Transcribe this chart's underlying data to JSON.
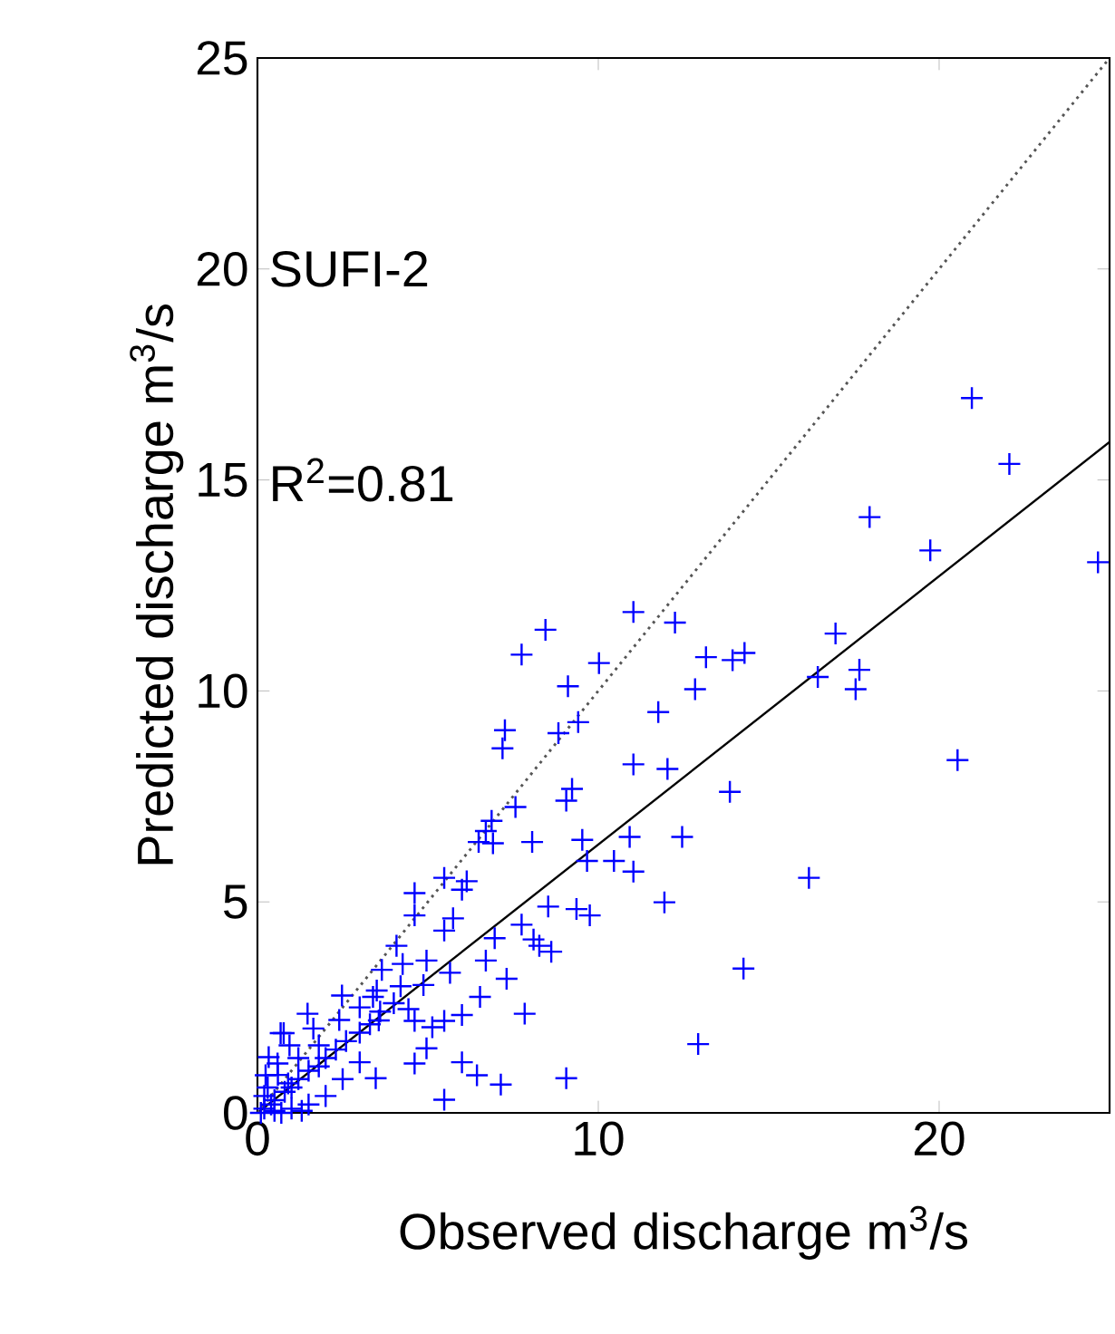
{
  "chart_data": {
    "type": "scatter",
    "xlabel": "Observed discharge m$^{3}$/s",
    "ylabel": "Predicted discharge m$^{3}$/s",
    "annotations": [
      "SUFI-2",
      "R$^{2}$=0.81"
    ],
    "xlim": [
      0,
      25
    ],
    "ylim": [
      0,
      25
    ],
    "xticks": [
      0,
      10,
      20
    ],
    "yticks": [
      0,
      5,
      10,
      15,
      20,
      25
    ],
    "grid": false,
    "series": [
      {
        "color": "#0000ff",
        "marker": "cross",
        "x": [
          20.96,
          22.06,
          17.96,
          19.74,
          24.66,
          8.45,
          11.03,
          12.25,
          16.96,
          10.02,
          9.11,
          13.16,
          13.94,
          14.29,
          12.84,
          16.44,
          17.66,
          17.55,
          11.76,
          9.41,
          8.83,
          11.03,
          12.03,
          20.54,
          9.23,
          9.06,
          13.86,
          10.92,
          12.46,
          9.53,
          9.67,
          10.46,
          11.03,
          16.18,
          11.94,
          9.36,
          9.75,
          8.53,
          8.62,
          8.27,
          14.26,
          12.93,
          9.06,
          7.75,
          7.26,
          7.19,
          7.57,
          6.87,
          6.7,
          6.49,
          6.91,
          8.06,
          5.48,
          6.14,
          6.0,
          4.61,
          4.61,
          5.74,
          5.48,
          7.75,
          8.1,
          6.96,
          6.7,
          4.08,
          4.26,
          4.96,
          4.87,
          5.65,
          7.31,
          3.65,
          2.48,
          1.47,
          1.64,
          0.77,
          3.39,
          3.56,
          4.43,
          4.61,
          5.13,
          5.48,
          6.0,
          6.53,
          7.84,
          4.96,
          4.61,
          6.0,
          6.44,
          7.14,
          5.48,
          3.47,
          0.33,
          0.59,
          0.24,
          0.94,
          0.68,
          0.2,
          0.5,
          0.8,
          1.0,
          1.2,
          1.5,
          1.8,
          2.0,
          2.3,
          2.6,
          3.0,
          3.3,
          3.6,
          4.0,
          0.5,
          1.0,
          1.5,
          2.0,
          2.5,
          3.0,
          0.3,
          0.6,
          1.2,
          1.8,
          2.4,
          3.0,
          3.5,
          4.2,
          0.1,
          0.4,
          0.7,
          1.3,
          0.2,
          0.9
        ],
        "values": [
          16.94,
          15.38,
          14.12,
          13.33,
          13.05,
          11.45,
          11.87,
          11.62,
          11.36,
          10.66,
          10.11,
          10.8,
          10.73,
          10.9,
          10.04,
          10.33,
          10.5,
          10.04,
          9.5,
          9.26,
          9.0,
          8.26,
          8.15,
          8.36,
          7.68,
          7.4,
          7.61,
          6.54,
          6.54,
          6.47,
          5.97,
          5.97,
          5.72,
          5.57,
          4.99,
          4.83,
          4.68,
          4.89,
          3.82,
          3.96,
          3.42,
          1.63,
          0.82,
          10.86,
          9.07,
          8.64,
          7.25,
          6.92,
          6.68,
          6.42,
          6.39,
          6.42,
          5.57,
          5.49,
          5.29,
          5.21,
          4.68,
          4.61,
          4.32,
          4.46,
          4.11,
          4.14,
          3.61,
          3.96,
          3.53,
          3.61,
          3.03,
          3.32,
          3.18,
          3.39,
          2.78,
          2.35,
          2.0,
          1.89,
          2.75,
          2.19,
          2.46,
          2.18,
          2.03,
          2.18,
          2.32,
          2.75,
          2.35,
          1.53,
          1.17,
          1.2,
          0.89,
          0.67,
          0.31,
          0.82,
          1.32,
          1.17,
          0.89,
          1.6,
          1.89,
          0.1,
          0.3,
          0.5,
          0.6,
          0.8,
          1.0,
          1.1,
          1.3,
          1.5,
          1.7,
          1.9,
          2.1,
          2.4,
          2.6,
          0.05,
          0.1,
          0.2,
          0.4,
          0.8,
          1.2,
          0.6,
          0.9,
          1.3,
          1.6,
          2.2,
          2.5,
          2.9,
          3.0,
          0.0,
          0.2,
          0.0,
          0.05,
          0.4,
          0.7
        ]
      },
      {
        "type": "line",
        "color": "#000000",
        "line_style": "solid",
        "marker": "none",
        "x": [
          0,
          25
        ],
        "values": [
          0,
          15.9
        ]
      },
      {
        "type": "line",
        "color": "#555555",
        "line_style": "dotted",
        "marker": "none",
        "x": [
          0,
          25
        ],
        "values": [
          0,
          25
        ]
      }
    ]
  }
}
